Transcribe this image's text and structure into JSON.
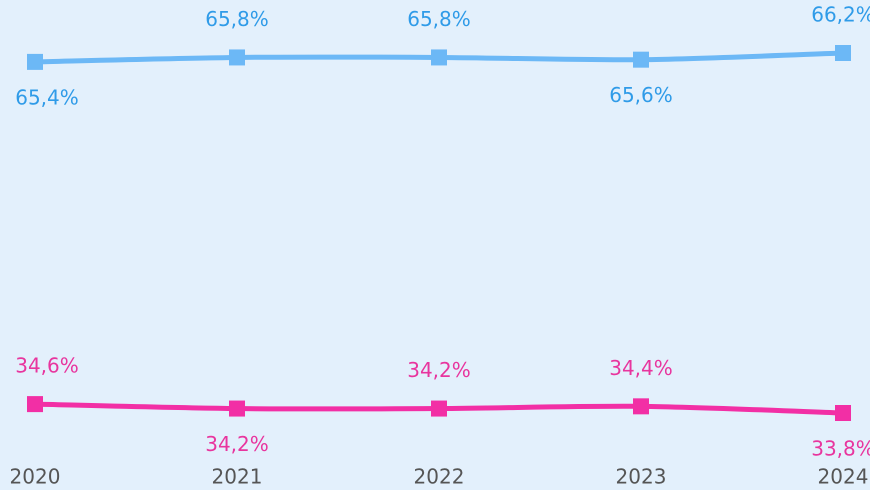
{
  "chart_data": {
    "type": "line",
    "categories": [
      "2020",
      "2021",
      "2022",
      "2023",
      "2024"
    ],
    "series": [
      {
        "color": "#6cb8f6",
        "label_color": "#2f9be8",
        "values": [
          65.4,
          65.8,
          65.8,
          65.6,
          66.2
        ],
        "value_labels": [
          "65,4%",
          "65,8%",
          "65,8%",
          "65,6%",
          "66,2%"
        ]
      },
      {
        "color": "#f22fa5",
        "label_color": "#e8359e",
        "values": [
          34.6,
          34.2,
          34.2,
          34.4,
          33.8
        ],
        "value_labels": [
          "34,6%",
          "34,2%",
          "34,2%",
          "34,4%",
          "33,8%"
        ]
      }
    ],
    "ylim": [
      32,
      68
    ]
  }
}
